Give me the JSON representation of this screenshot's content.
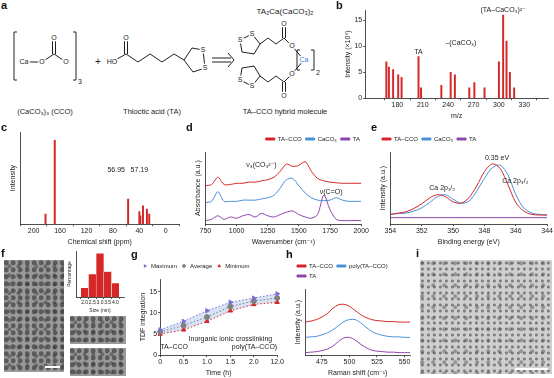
{
  "diagram": {
    "panel_label": "a",
    "reactants": [
      {
        "label": "(CaCO₃)₃ (CCO)",
        "atoms": [
          "Ca",
          "O",
          "O",
          "O"
        ],
        "count": "3"
      },
      {
        "label": "Thioctic acid (TA)",
        "atoms": [
          "HO",
          "O",
          "S",
          "S"
        ]
      }
    ],
    "operator": "+",
    "product": {
      "formula": "TA₂Ca(CaCO₃)₂",
      "label": "TA–CCO hybrid molecule",
      "atoms": [
        "S",
        "S",
        "O",
        "O",
        "Ca",
        "O",
        "O",
        "S",
        "S"
      ],
      "count": "2"
    }
  },
  "chart_data": [
    {
      "panel_label": "b",
      "type": "stem",
      "x": [
        167,
        170,
        175,
        181,
        185,
        205,
        208,
        232,
        243,
        248,
        265,
        271,
        283,
        300,
        305,
        309,
        313,
        318
      ],
      "values": [
        7.0,
        6.0,
        5.5,
        4.5,
        4.0,
        8.0,
        2.0,
        2.5,
        5.0,
        4.5,
        2.0,
        3.0,
        2.0,
        7.0,
        16.0,
        11.0,
        5.0,
        2.0
      ],
      "color": "#d62728",
      "x_label": "m/z",
      "y_label": "Intensity (×10⁶)",
      "xlim": [
        160,
        340
      ],
      "xticks": [
        180,
        210,
        240,
        270,
        300,
        330
      ],
      "ylim": [
        0,
        17
      ],
      "yticks": [
        0,
        5,
        10,
        15
      ],
      "grid": false,
      "annotations": [
        {
          "text": "TA",
          "x": 205,
          "y": 8.3
        },
        {
          "text": "–(CaCO₃)",
          "x": 255,
          "y": 10
        },
        {
          "text": "(TA–CaCO₃)²⁻",
          "x": 305,
          "y": 16.3
        }
      ]
    },
    {
      "panel_label": "c",
      "type": "stem",
      "x": [
        182,
        168,
        57,
        40,
        38.5,
        34.5,
        28.5,
        25
      ],
      "values": [
        0.12,
        1.0,
        0.3,
        0.15,
        0.1,
        0.22,
        0.18,
        0.12
      ],
      "color": "#d62728",
      "x_label": "Chemical shift (ppm)",
      "y_label": "Intensity",
      "xlim": [
        200,
        0
      ],
      "xticks": [
        200,
        160,
        120,
        80,
        40,
        0
      ],
      "ylim": [
        0,
        1.1
      ],
      "yticks": [],
      "tick_labels": "x",
      "grid": false,
      "annotations": [
        {
          "text": "56.95",
          "x": 75,
          "y": 0.6
        },
        {
          "text": "57.19",
          "x": 40,
          "y": 0.6
        }
      ]
    },
    {
      "panel_label": "d",
      "type": "line",
      "x": [
        750,
        800,
        850,
        900,
        950,
        1000,
        1050,
        1100,
        1150,
        1200,
        1250,
        1300,
        1350,
        1400,
        1450,
        1500,
        1550,
        1600,
        1650,
        1700,
        1750,
        1800,
        1850,
        1900,
        1950,
        2000
      ],
      "series": [
        {
          "name": "TA–CCO",
          "color": "#d62728",
          "values": [
            1.6,
            1.65,
            1.95,
            1.65,
            1.65,
            1.7,
            1.7,
            1.75,
            1.75,
            1.8,
            1.85,
            1.95,
            2.2,
            2.5,
            2.4,
            2.45,
            2.6,
            2.2,
            1.9,
            1.8,
            1.75,
            1.72,
            1.7,
            1.7,
            1.7,
            1.7
          ]
        },
        {
          "name": "CaCO₃",
          "color": "#4a90d9",
          "values": [
            0.9,
            0.95,
            1.35,
            0.95,
            0.95,
            0.95,
            1.0,
            1.0,
            1.0,
            1.05,
            1.1,
            1.2,
            1.5,
            1.85,
            1.9,
            1.6,
            1.3,
            1.1,
            1.0,
            0.98,
            1.0,
            1.1,
            1.0,
            0.95,
            0.95,
            0.95
          ]
        },
        {
          "name": "TA",
          "color": "#8e44ad",
          "values": [
            0.15,
            0.2,
            0.35,
            0.2,
            0.3,
            0.25,
            0.35,
            0.4,
            0.3,
            0.45,
            0.35,
            0.3,
            0.4,
            0.5,
            0.55,
            0.4,
            0.3,
            0.25,
            0.4,
            1.2,
            0.6,
            0.2,
            0.15,
            0.15,
            0.15,
            0.15
          ]
        }
      ],
      "x_label": "Wavenumber (cm⁻¹)",
      "y_label": "Absorbance (a.u.)",
      "xlim": [
        750,
        2000
      ],
      "xticks": [
        750,
        1000,
        1250,
        1500,
        1750,
        2000
      ],
      "ylim": [
        0,
        3
      ],
      "yticks": [],
      "tick_labels": "x",
      "grid": false,
      "legend": "upper right",
      "annotations": [
        {
          "text": "ν₃(CO₃²⁻)",
          "x": 1200,
          "y": 2.3
        },
        {
          "text": "ν(C=O)",
          "x": 1850,
          "y": 1.2
        }
      ]
    },
    {
      "panel_label": "e",
      "type": "line",
      "x": [
        354,
        353.5,
        353,
        352.5,
        352,
        351.5,
        351,
        350.5,
        350,
        349.5,
        349,
        348.5,
        348,
        347.5,
        347,
        346.5,
        346,
        345.5,
        345,
        344.5,
        344
      ],
      "series": [
        {
          "name": "TA–CCO",
          "color": "#d62728",
          "values": [
            0.15,
            0.17,
            0.19,
            0.24,
            0.31,
            0.4,
            0.45,
            0.42,
            0.34,
            0.32,
            0.4,
            0.58,
            0.8,
            0.92,
            0.85,
            0.6,
            0.33,
            0.2,
            0.15,
            0.14,
            0.14
          ]
        },
        {
          "name": "CaCO₃",
          "color": "#4a90d9",
          "values": [
            0.15,
            0.16,
            0.17,
            0.2,
            0.25,
            0.33,
            0.42,
            0.45,
            0.38,
            0.32,
            0.35,
            0.5,
            0.7,
            0.86,
            0.9,
            0.75,
            0.45,
            0.25,
            0.17,
            0.15,
            0.14
          ]
        },
        {
          "name": "TA",
          "color": "#8e44ad",
          "values": [
            0.1,
            0.1,
            0.1,
            0.1,
            0.1,
            0.1,
            0.1,
            0.1,
            0.1,
            0.1,
            0.1,
            0.1,
            0.1,
            0.1,
            0.1,
            0.1,
            0.1,
            0.1,
            0.1,
            0.1,
            0.1
          ]
        }
      ],
      "x_label": "Binding energy (eV)",
      "y_label": "Intensity (a.u.)",
      "xlim": [
        354,
        344
      ],
      "xticks": [
        354,
        352,
        350,
        348,
        346,
        344
      ],
      "ylim": [
        0,
        1.1
      ],
      "yticks": [],
      "tick_labels": "x",
      "grid": false,
      "legend": "upper left",
      "annotations": [
        {
          "text": "0.35 eV",
          "x": 347.2,
          "y": 0.95
        },
        {
          "text": "Ca 2p₁/₂",
          "x": 350.7,
          "y": 0.5
        },
        {
          "text": "Ca 2p₃/₂",
          "x": 345.2,
          "y": 0.6
        }
      ]
    },
    {
      "type": "histogram",
      "bins": [
        1.75,
        2.25,
        2.75,
        3.25,
        3.75,
        4.25
      ],
      "values": [
        8,
        20,
        38,
        22,
        12
      ],
      "color": "#d62728",
      "x_label": "Size (nm)",
      "y_label": "Percentage",
      "xlim": [
        1.75,
        4.25
      ],
      "xticks": [
        {
          "value": 2,
          "label": "2.0"
        },
        2.5,
        {
          "value": 3,
          "label": "3.0"
        },
        3.5,
        {
          "value": 4,
          "label": "4.0"
        }
      ],
      "ylim": [
        0,
        40
      ],
      "yticks": [],
      "tick_labels": "x",
      "grid": false
    },
    {
      "panel_label": "g",
      "type": "line",
      "categories": [
        "0",
        "0.5",
        "1.0",
        "1.5",
        "2.0",
        "12.0"
      ],
      "series": [
        {
          "name": "Maximum",
          "color": "#7b6fd6",
          "marker": "triangle-right",
          "line_style": "dotted",
          "values": [
            6,
            8,
            10.5,
            12.5,
            13.5,
            14.5
          ]
        },
        {
          "name": "Average",
          "color": "#808080",
          "marker": "circle",
          "line_style": "dotted",
          "values": [
            5.5,
            7,
            9,
            11.5,
            12.8,
            13.5
          ]
        },
        {
          "name": "Minimum",
          "color": "#d62728",
          "marker": "triangle",
          "line_style": "dotted",
          "values": [
            5,
            6,
            8,
            10.5,
            12,
            12.5
          ]
        }
      ],
      "x_label": "Time (h)",
      "y_label": "TDF integration",
      "ylim": [
        0,
        18
      ],
      "yticks": [
        0,
        5,
        10,
        15
      ],
      "grid": false,
      "legend": "upper left",
      "annotations": [
        {
          "text": "TA–CCO",
          "x": "0",
          "y": 1
        },
        {
          "text": "Inorganic ionic crosslinking",
          "x": "1.5",
          "y": 3
        },
        {
          "text": "poly(TA–CCO)",
          "x": "12.0",
          "y": 1
        }
      ]
    },
    {
      "panel_label": "h",
      "type": "line",
      "x": [
        460,
        465,
        470,
        475,
        480,
        485,
        490,
        495,
        500,
        505,
        510,
        515,
        520,
        525,
        530,
        535,
        540,
        545,
        550,
        555
      ],
      "series": [
        {
          "name": "TA–CCO",
          "color": "#d62728",
          "values": [
            0.65,
            0.67,
            0.7,
            0.75,
            0.82,
            0.92,
            0.99,
            1.0,
            0.96,
            0.88,
            0.8,
            0.74,
            0.7,
            0.68,
            0.67,
            0.66,
            0.66,
            0.65,
            0.65,
            0.65
          ]
        },
        {
          "name": "poly(TA–CCO)",
          "color": "#4a90d9",
          "values": [
            0.35,
            0.36,
            0.37,
            0.4,
            0.44,
            0.5,
            0.58,
            0.66,
            0.7,
            0.7,
            0.64,
            0.55,
            0.47,
            0.42,
            0.39,
            0.37,
            0.36,
            0.36,
            0.35,
            0.35
          ]
        },
        {
          "name": "TA",
          "color": "#8e44ad",
          "values": [
            0.05,
            0.06,
            0.07,
            0.09,
            0.12,
            0.18,
            0.27,
            0.34,
            0.35,
            0.3,
            0.22,
            0.15,
            0.1,
            0.08,
            0.07,
            0.06,
            0.06,
            0.05,
            0.05,
            0.05
          ]
        }
      ],
      "x_label": "Raman shift (cm⁻¹)",
      "y_label": "Intensity (a.u.)",
      "xlim": [
        460,
        555
      ],
      "xticks": [
        475,
        500,
        525,
        550
      ],
      "ylim": [
        0,
        1.3
      ],
      "yticks": [],
      "tick_labels": "x",
      "grid": false,
      "legend": "upper left"
    }
  ],
  "images": [
    {
      "panel_label": "f"
    },
    {
      "panel_label": "i"
    }
  ]
}
